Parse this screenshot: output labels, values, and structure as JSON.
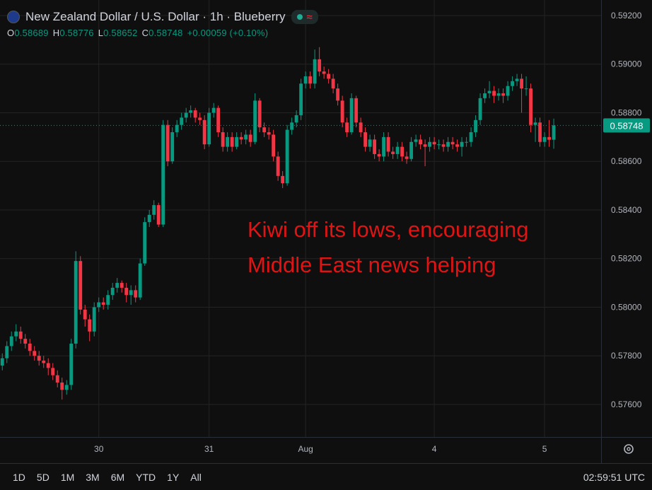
{
  "header": {
    "title": "New Zealand Dollar / U.S. Dollar · 1h · Blueberry",
    "ohlc_labels": [
      "O",
      "H",
      "L",
      "C"
    ],
    "change": "+0.00059 (+0.10%)"
  },
  "chart_data": {
    "type": "candlestick",
    "open": [
      0.5776,
      0.5779,
      0.5784,
      0.5788,
      0.579,
      0.5787,
      0.5785,
      0.5782,
      0.578,
      0.5778,
      0.5777,
      0.5775,
      0.5772,
      0.5769,
      0.5766,
      0.5768,
      0.5785,
      0.5819,
      0.5799,
      0.5795,
      0.579,
      0.58,
      0.5802,
      0.5801,
      0.5805,
      0.5808,
      0.581,
      0.5808,
      0.5805,
      0.5807,
      0.5804,
      0.5818,
      0.5835,
      0.5838,
      0.5842,
      0.5834,
      0.5875,
      0.586,
      0.5872,
      0.5875,
      0.5878,
      0.588,
      0.5881,
      0.5878,
      0.5877,
      0.5867,
      0.588,
      0.5882,
      0.5872,
      0.5866,
      0.587,
      0.5866,
      0.587,
      0.5869,
      0.5871,
      0.5868,
      0.5885,
      0.5874,
      0.5872,
      0.5871,
      0.5862,
      0.5854,
      0.5851,
      0.5873,
      0.5876,
      0.5879,
      0.5892,
      0.5895,
      0.5892,
      0.5902,
      0.5897,
      0.5896,
      0.5894,
      0.589,
      0.5885,
      0.5876,
      0.5872,
      0.5886,
      0.5876,
      0.5872,
      0.5866,
      0.5869,
      0.5863,
      0.5862,
      0.587,
      0.5864,
      0.5863,
      0.5866,
      0.5862,
      0.5861,
      0.5868,
      0.5869,
      0.5867,
      0.5866,
      0.5868,
      0.5867,
      0.5867,
      0.5866,
      0.5868,
      0.5867,
      0.5866,
      0.5868,
      0.5868,
      0.5872,
      0.5877,
      0.5886,
      0.5888,
      0.5889,
      0.5887,
      0.5888,
      0.5887,
      0.5891,
      0.5893,
      0.5894,
      0.589,
      0.589,
      0.5875,
      0.5876,
      0.5868,
      0.587,
      0.58689
    ],
    "high": [
      0.5781,
      0.5786,
      0.579,
      0.5793,
      0.5792,
      0.5789,
      0.5787,
      0.5784,
      0.5782,
      0.578,
      0.5779,
      0.5777,
      0.5774,
      0.5771,
      0.577,
      0.5787,
      0.5823,
      0.5821,
      0.5801,
      0.5797,
      0.5802,
      0.5804,
      0.5804,
      0.5807,
      0.581,
      0.5812,
      0.5811,
      0.581,
      0.5809,
      0.5809,
      0.582,
      0.5837,
      0.584,
      0.5844,
      0.5843,
      0.5877,
      0.5877,
      0.5874,
      0.5877,
      0.588,
      0.5882,
      0.5883,
      0.5882,
      0.588,
      0.5879,
      0.5882,
      0.5884,
      0.5883,
      0.5874,
      0.5872,
      0.5872,
      0.5872,
      0.5872,
      0.5873,
      0.5873,
      0.5888,
      0.5886,
      0.5876,
      0.5874,
      0.5873,
      0.5864,
      0.5856,
      0.5875,
      0.5878,
      0.5881,
      0.5894,
      0.5897,
      0.5897,
      0.5906,
      0.5907,
      0.5899,
      0.5898,
      0.5896,
      0.5892,
      0.5887,
      0.5878,
      0.5888,
      0.5887,
      0.5878,
      0.5874,
      0.5871,
      0.5871,
      0.5865,
      0.5872,
      0.5872,
      0.5866,
      0.5868,
      0.5868,
      0.5864,
      0.587,
      0.5871,
      0.5871,
      0.5869,
      0.587,
      0.587,
      0.5869,
      0.5869,
      0.587,
      0.587,
      0.5869,
      0.587,
      0.587,
      0.5874,
      0.5879,
      0.5888,
      0.589,
      0.5893,
      0.5891,
      0.589,
      0.589,
      0.5893,
      0.5895,
      0.5896,
      0.5896,
      0.5895,
      0.5892,
      0.5878,
      0.5878,
      0.5872,
      0.5877,
      0.58776
    ],
    "low": [
      0.5774,
      0.5777,
      0.5782,
      0.5786,
      0.5785,
      0.5783,
      0.578,
      0.5778,
      0.5776,
      0.5775,
      0.5772,
      0.577,
      0.5767,
      0.5762,
      0.5764,
      0.5766,
      0.5783,
      0.5797,
      0.5792,
      0.5786,
      0.5788,
      0.5798,
      0.5799,
      0.5799,
      0.5803,
      0.5806,
      0.5806,
      0.5802,
      0.5801,
      0.5802,
      0.5803,
      0.5817,
      0.5833,
      0.5836,
      0.5833,
      0.5833,
      0.5858,
      0.5859,
      0.587,
      0.5873,
      0.5876,
      0.5878,
      0.5876,
      0.5875,
      0.5865,
      0.5866,
      0.5878,
      0.587,
      0.5864,
      0.5864,
      0.5864,
      0.5865,
      0.5867,
      0.5867,
      0.5866,
      0.5867,
      0.5872,
      0.587,
      0.5869,
      0.586,
      0.5852,
      0.5849,
      0.585,
      0.5871,
      0.5874,
      0.5877,
      0.589,
      0.589,
      0.589,
      0.5895,
      0.5894,
      0.5892,
      0.5888,
      0.5883,
      0.5874,
      0.587,
      0.5871,
      0.5874,
      0.587,
      0.5864,
      0.5864,
      0.5861,
      0.586,
      0.586,
      0.5862,
      0.5861,
      0.5861,
      0.586,
      0.5859,
      0.586,
      0.5866,
      0.5865,
      0.5858,
      0.5864,
      0.5865,
      0.5865,
      0.5864,
      0.5864,
      0.5865,
      0.5864,
      0.5862,
      0.5866,
      0.5866,
      0.587,
      0.5875,
      0.5884,
      0.5886,
      0.5884,
      0.5885,
      0.5884,
      0.5885,
      0.5889,
      0.5891,
      0.588,
      0.5887,
      0.5872,
      0.5868,
      0.5866,
      0.5866,
      0.5866,
      0.58652
    ],
    "close": [
      0.5779,
      0.5784,
      0.5788,
      0.579,
      0.5787,
      0.5785,
      0.5782,
      0.578,
      0.5778,
      0.5777,
      0.5775,
      0.5772,
      0.5769,
      0.5766,
      0.5768,
      0.5785,
      0.5819,
      0.5799,
      0.5795,
      0.579,
      0.58,
      0.5802,
      0.5801,
      0.5805,
      0.5808,
      0.581,
      0.5808,
      0.5805,
      0.5807,
      0.5804,
      0.5818,
      0.5835,
      0.5838,
      0.5842,
      0.5834,
      0.5875,
      0.586,
      0.5872,
      0.5875,
      0.5878,
      0.588,
      0.5881,
      0.5878,
      0.5877,
      0.5867,
      0.588,
      0.5882,
      0.5872,
      0.5866,
      0.587,
      0.5866,
      0.587,
      0.5869,
      0.5871,
      0.5868,
      0.5885,
      0.5874,
      0.5872,
      0.5871,
      0.5862,
      0.5854,
      0.5851,
      0.5873,
      0.5876,
      0.5879,
      0.5892,
      0.5895,
      0.5892,
      0.5902,
      0.5897,
      0.5896,
      0.5894,
      0.589,
      0.5885,
      0.5876,
      0.5872,
      0.5886,
      0.5876,
      0.5872,
      0.5866,
      0.5869,
      0.5863,
      0.5862,
      0.587,
      0.5864,
      0.5863,
      0.5866,
      0.5862,
      0.5861,
      0.5868,
      0.5869,
      0.5867,
      0.5866,
      0.5868,
      0.5867,
      0.5867,
      0.5866,
      0.5868,
      0.5867,
      0.5866,
      0.5868,
      0.5868,
      0.5872,
      0.5877,
      0.5886,
      0.5888,
      0.5889,
      0.5887,
      0.5888,
      0.5887,
      0.5891,
      0.5893,
      0.5894,
      0.589,
      0.589,
      0.5875,
      0.5876,
      0.5868,
      0.587,
      0.58689,
      0.58748
    ],
    "ylim": [
      0.57466,
      0.59264
    ],
    "xlim": [
      -0.5,
      130.3
    ],
    "yticks": [
      {
        "value": 0.576,
        "label": "0.57600"
      },
      {
        "value": 0.578,
        "label": "0.57800"
      },
      {
        "value": 0.58,
        "label": "0.58000"
      },
      {
        "value": 0.582,
        "label": "0.58200"
      },
      {
        "value": 0.584,
        "label": "0.58400"
      },
      {
        "value": 0.586,
        "label": "0.58600"
      },
      {
        "value": 0.588,
        "label": "0.58800"
      },
      {
        "value": 0.59,
        "label": "0.59000"
      },
      {
        "value": 0.592,
        "label": "0.59200"
      }
    ],
    "xticks": [
      {
        "value": 21,
        "label": "30"
      },
      {
        "value": 45,
        "label": "31"
      },
      {
        "value": 66,
        "label": "Aug"
      },
      {
        "value": 94,
        "label": "4"
      },
      {
        "value": 118,
        "label": "5"
      }
    ],
    "grid": true,
    "up_color": "#089981",
    "down_color": "#f23645",
    "last_price_line": true,
    "annotation": [
      "Kiwi off its lows, encouraging",
      "Middle East news helping"
    ]
  },
  "toolbar": {
    "ranges": [
      "1D",
      "5D",
      "1M",
      "3M",
      "6M",
      "YTD",
      "1Y",
      "All"
    ],
    "clock": "02:59:51 UTC"
  }
}
